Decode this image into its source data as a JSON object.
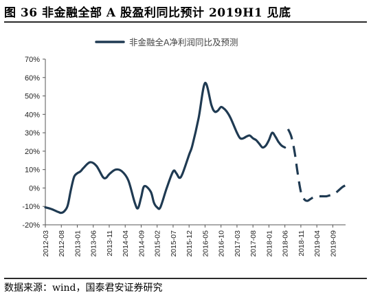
{
  "figure": {
    "title": "图 36 非金融全部 A 股盈利同比预计 2019H1 见底",
    "source": "数据来源：wind，国泰君安证券研究"
  },
  "chart_data": {
    "type": "line",
    "legend": {
      "label": "非金融全A净利润同比及预测",
      "placement": "top-center"
    },
    "yticks": [
      "70%",
      "60%",
      "50%",
      "40%",
      "30%",
      "20%",
      "10%",
      "0%",
      "-10%",
      "-20%"
    ],
    "ylim": [
      -20,
      70
    ],
    "xlabels": [
      "2012-03",
      "2012-08",
      "2013-01",
      "2013-06",
      "2013-11",
      "2014-04",
      "2014-09",
      "2015-02",
      "2015-07",
      "2015-12",
      "2016-05",
      "2016-10",
      "2017-03",
      "2017-08",
      "2018-01",
      "2018-06",
      "2018-11",
      "2019-04",
      "2019-09"
    ],
    "color": "#1f3a52",
    "series": [
      {
        "name": "",
        "style": "solid",
        "x": [
          0,
          2,
          4,
          5,
          6,
          7,
          8,
          9,
          10,
          11,
          12,
          14,
          16,
          18,
          19,
          20,
          22,
          24,
          26,
          28,
          29,
          30,
          31,
          33,
          34,
          35,
          36,
          38,
          40,
          41,
          42,
          43,
          45,
          46,
          48,
          50,
          52,
          53,
          54,
          55,
          56,
          57,
          58,
          60,
          61,
          62,
          63,
          64,
          65,
          66,
          67,
          68,
          69,
          70,
          71,
          72,
          73,
          74,
          75
        ],
        "y": [
          -10.5,
          -11.5,
          -13,
          -13.5,
          -12.5,
          -9.5,
          -1,
          6,
          8,
          9,
          11,
          14,
          12,
          6,
          5.5,
          7.5,
          10,
          9,
          4,
          -8,
          -11,
          -5,
          1,
          -2,
          -8,
          -10.5,
          -10.5,
          0,
          9,
          8,
          5.5,
          8,
          18,
          23,
          38,
          57,
          45,
          41.5,
          42,
          44,
          43,
          41,
          38,
          30,
          27,
          27,
          28,
          28.5,
          27,
          26,
          24,
          22,
          23,
          26,
          30,
          28,
          25,
          23,
          22
        ]
      },
      {
        "name": "",
        "style": "dashed",
        "x": [
          76,
          77,
          78,
          79,
          80,
          81,
          82,
          83,
          84,
          85,
          86,
          87,
          88,
          89,
          90,
          91,
          92,
          93,
          94
        ],
        "y": [
          32,
          28,
          20,
          8,
          -2,
          -6,
          -7,
          -6,
          -5,
          -4.5,
          -4.5,
          -4.5,
          -4.5,
          -4,
          -3.5,
          -2.5,
          -1,
          0.5,
          1.5
        ]
      }
    ],
    "grid": false
  }
}
